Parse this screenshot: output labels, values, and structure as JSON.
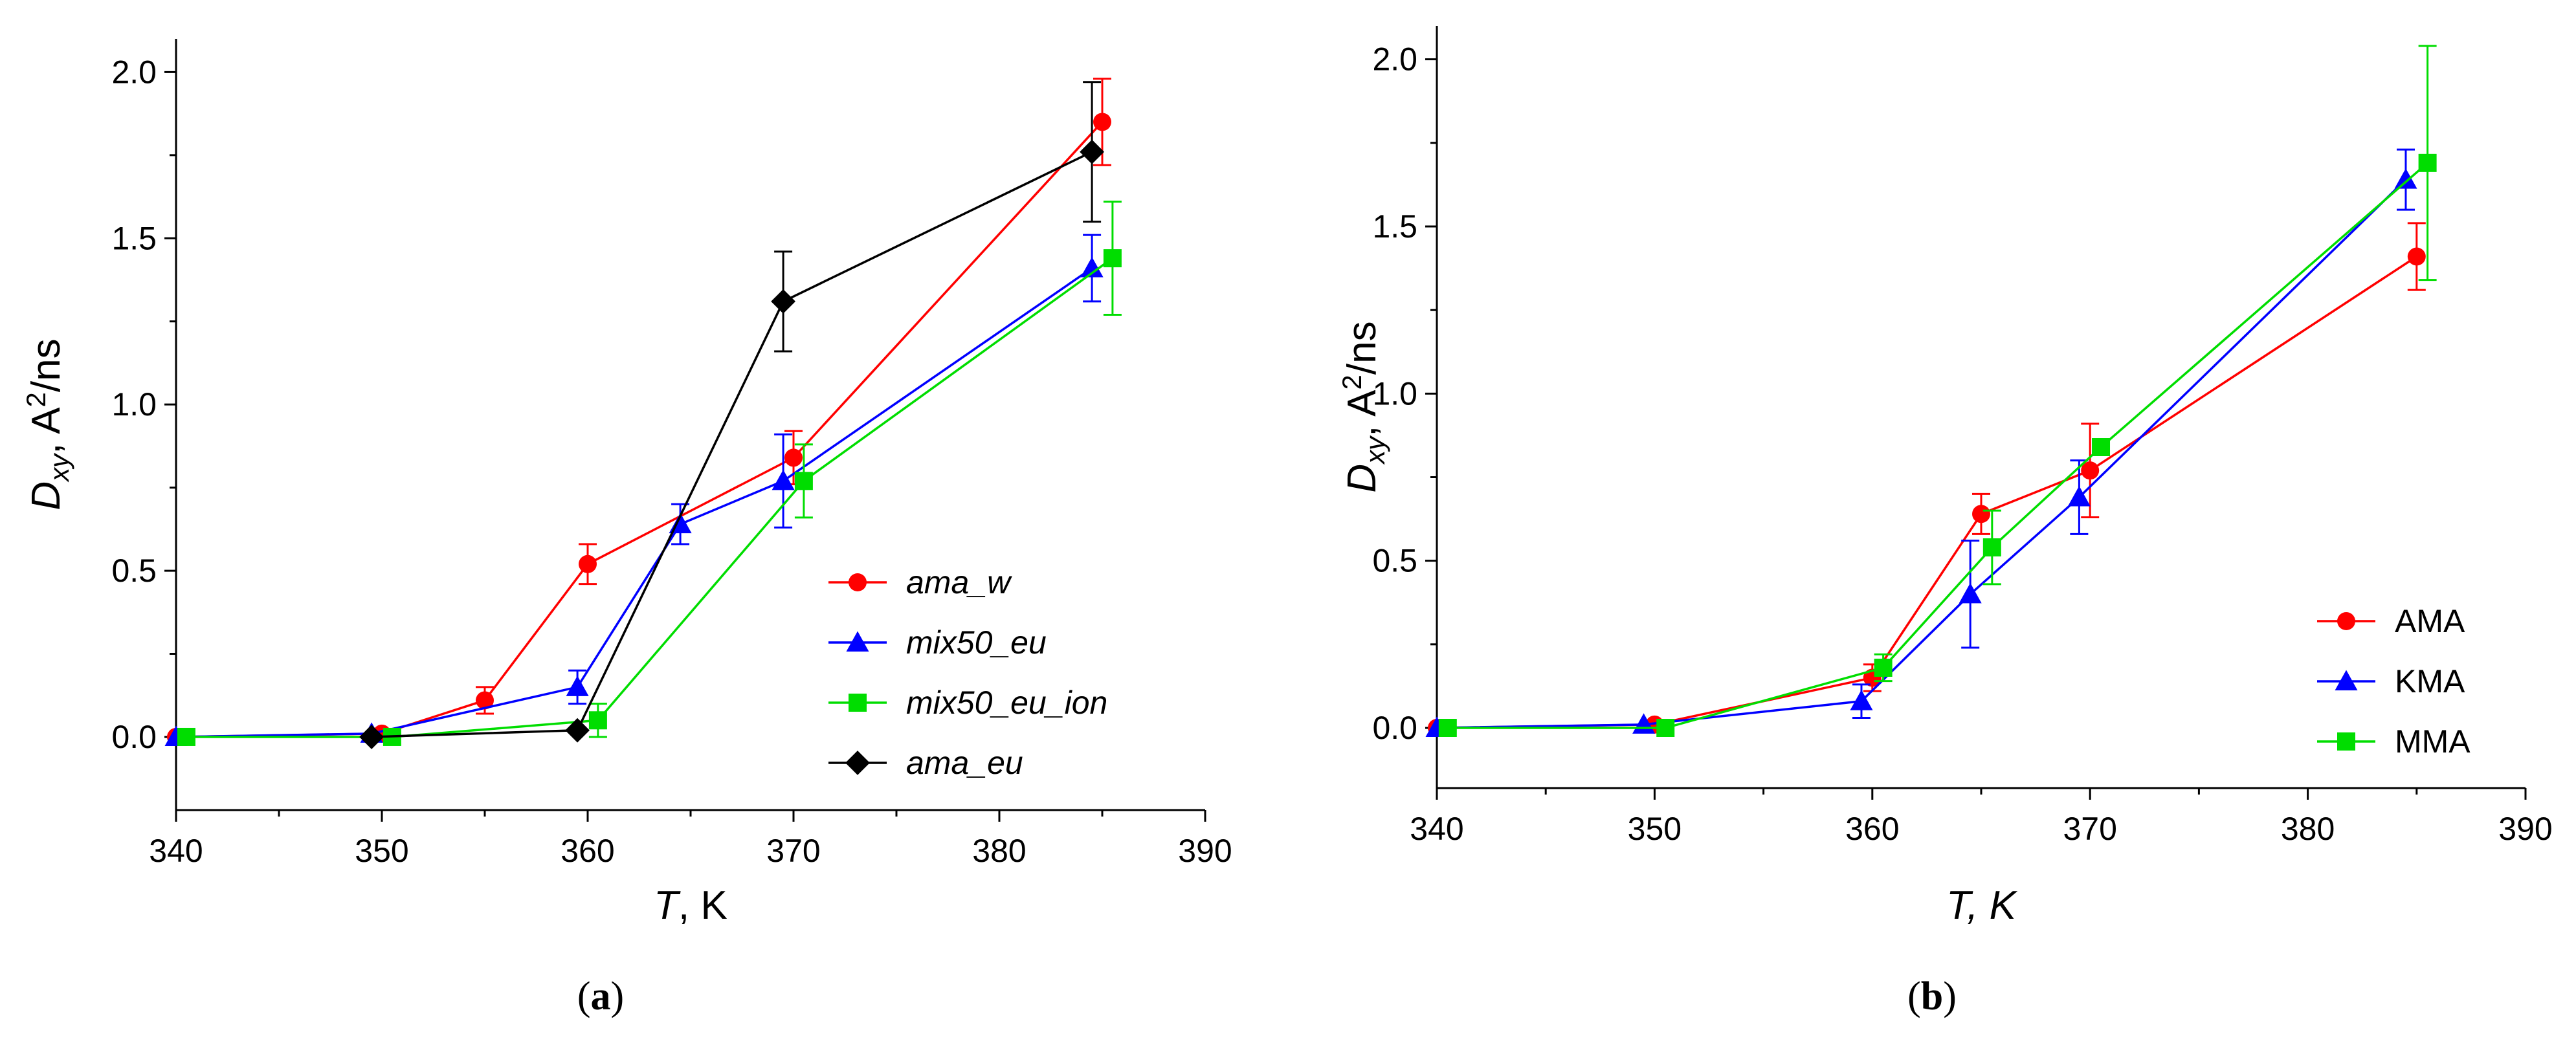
{
  "chart_data": [
    {
      "type": "line",
      "caption_letter": "a",
      "x_axis_var": "T",
      "x_axis_unit": ", K",
      "y_axis_var": "D",
      "y_axis_sub": "xy",
      "y_axis_unit_pre": ", A",
      "y_axis_unit_sup": "2",
      "y_axis_unit_post": "/ns",
      "xlim": [
        340,
        390
      ],
      "ylim": [
        -0.22,
        2.1
      ],
      "xticks": [
        340,
        350,
        360,
        370,
        380,
        390
      ],
      "yticks": [
        0.0,
        0.5,
        1.0,
        1.5,
        2.0
      ],
      "grid": false,
      "legend_placement": "lower-right",
      "legend_italic": true,
      "series": [
        {
          "name": "ama_w",
          "color": "#ff0000",
          "marker": "circle",
          "x": [
            340,
            350,
            355,
            360,
            370,
            385
          ],
          "y": [
            0.0,
            0.01,
            0.11,
            0.52,
            0.84,
            1.85
          ],
          "err": [
            0.0,
            0.0,
            0.04,
            0.06,
            0.08,
            0.13
          ]
        },
        {
          "name": "mix50_eu",
          "color": "#0000ff",
          "marker": "triangle",
          "x": [
            340,
            349.5,
            359.5,
            364.5,
            369.5,
            384.5
          ],
          "y": [
            0.0,
            0.01,
            0.15,
            0.64,
            0.77,
            1.41
          ],
          "err": [
            0.0,
            0.0,
            0.05,
            0.06,
            0.14,
            0.1
          ]
        },
        {
          "name": "mix50_eu_ion",
          "color": "#00dd00",
          "marker": "square",
          "x": [
            340.5,
            350.5,
            360.5,
            370.5,
            385.5
          ],
          "y": [
            0.0,
            0.0,
            0.05,
            0.77,
            1.44
          ],
          "err": [
            0.0,
            0.0,
            0.05,
            0.11,
            0.17
          ]
        },
        {
          "name": "ama_eu",
          "color": "#000000",
          "marker": "diamond",
          "x": [
            349.5,
            359.5,
            369.5,
            384.5
          ],
          "y": [
            0.0,
            0.02,
            1.31,
            1.76
          ],
          "err": [
            0.0,
            0.0,
            0.15,
            0.21
          ]
        }
      ]
    },
    {
      "type": "line",
      "caption_letter": "b",
      "x_axis_var": "T, K",
      "x_axis_unit": "",
      "y_axis_var": "D",
      "y_axis_sub": "xy",
      "y_axis_unit_pre": ", A",
      "y_axis_unit_sup": "2",
      "y_axis_unit_post": "/ns",
      "xlim": [
        340,
        390
      ],
      "ylim": [
        -0.18,
        2.1
      ],
      "xticks": [
        340,
        350,
        360,
        370,
        380,
        390
      ],
      "yticks": [
        0.0,
        0.5,
        1.0,
        1.5,
        2.0
      ],
      "grid": false,
      "legend_placement": "lower-right",
      "legend_italic": false,
      "series": [
        {
          "name": "AMA",
          "color": "#ff0000",
          "marker": "circle",
          "x": [
            340,
            350,
            360,
            365,
            370,
            385
          ],
          "y": [
            0.0,
            0.01,
            0.15,
            0.64,
            0.77,
            1.41
          ],
          "err": [
            0.0,
            0.0,
            0.04,
            0.06,
            0.14,
            0.1
          ]
        },
        {
          "name": "KMA",
          "color": "#0000ff",
          "marker": "triangle",
          "x": [
            340,
            349.5,
            359.5,
            364.5,
            369.5,
            384.5
          ],
          "y": [
            0.0,
            0.01,
            0.08,
            0.4,
            0.69,
            1.64
          ],
          "err": [
            0.0,
            0.0,
            0.05,
            0.16,
            0.11,
            0.09
          ]
        },
        {
          "name": "MMA",
          "color": "#00dd00",
          "marker": "square",
          "x": [
            340.5,
            350.5,
            360.5,
            365.5,
            370.5,
            385.5
          ],
          "y": [
            0.0,
            0.0,
            0.18,
            0.54,
            0.84,
            1.69
          ],
          "err": [
            0.0,
            0.0,
            0.04,
            0.11,
            0.0,
            0.35
          ]
        }
      ]
    }
  ]
}
